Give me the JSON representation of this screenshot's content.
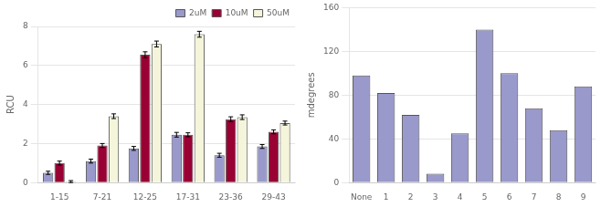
{
  "chart_data": [
    {
      "type": "bar",
      "categories": [
        "1-15",
        "7-21",
        "12-25",
        "17-31",
        "23-36",
        "29-43"
      ],
      "series": [
        {
          "name": "2uM",
          "color": "#9999cc",
          "values": [
            0.5,
            1.1,
            1.75,
            2.45,
            1.4,
            1.85
          ],
          "errors": [
            0.08,
            0.1,
            0.1,
            0.12,
            0.1,
            0.1
          ]
        },
        {
          "name": "10uM",
          "color": "#990033",
          "values": [
            1.0,
            1.9,
            6.55,
            2.45,
            3.25,
            2.6
          ],
          "errors": [
            0.1,
            0.1,
            0.15,
            0.1,
            0.12,
            0.1
          ]
        },
        {
          "name": "50uM",
          "color": "#f5f5dc",
          "values": [
            0.05,
            3.4,
            7.1,
            7.6,
            3.35,
            3.05
          ],
          "errors": [
            0.05,
            0.12,
            0.15,
            0.15,
            0.12,
            0.1
          ]
        }
      ],
      "ylabel": "RCU",
      "ylim": [
        0,
        8
      ],
      "yticks": [
        0,
        2,
        4,
        6,
        8
      ],
      "grid": true,
      "legend": "upper right"
    },
    {
      "type": "bar",
      "categories": [
        "None",
        "1",
        "2",
        "3",
        "4",
        "5",
        "6",
        "7",
        "8",
        "9"
      ],
      "values": [
        98,
        82,
        62,
        8,
        45,
        140,
        100,
        68,
        48,
        88
      ],
      "color": "#9999cc",
      "ylabel": "mdegrees",
      "ylim": [
        0,
        160
      ],
      "yticks": [
        0,
        40,
        80,
        120,
        160
      ],
      "grid": true
    }
  ]
}
